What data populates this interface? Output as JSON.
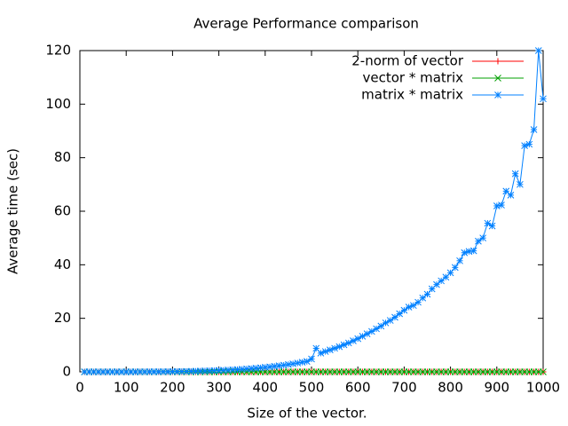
{
  "chart_data": {
    "type": "line",
    "title": "Average Performance comparison",
    "x_label": "Size of the vector.",
    "y_label": "Average time (sec)",
    "x": [
      10,
      20,
      30,
      40,
      50,
      60,
      70,
      80,
      90,
      100,
      110,
      120,
      130,
      140,
      150,
      160,
      170,
      180,
      190,
      200,
      210,
      220,
      230,
      240,
      250,
      260,
      270,
      280,
      290,
      300,
      310,
      320,
      330,
      340,
      350,
      360,
      370,
      380,
      390,
      400,
      410,
      420,
      430,
      440,
      450,
      460,
      470,
      480,
      490,
      500,
      510,
      520,
      530,
      540,
      550,
      560,
      570,
      580,
      590,
      600,
      610,
      620,
      630,
      640,
      650,
      660,
      670,
      680,
      690,
      700,
      710,
      720,
      730,
      740,
      750,
      760,
      770,
      780,
      790,
      800,
      810,
      820,
      830,
      840,
      850,
      860,
      870,
      880,
      890,
      900,
      910,
      920,
      930,
      940,
      950,
      960,
      970,
      980,
      990,
      1000
    ],
    "series": [
      {
        "name": "2-norm of vector",
        "color": "#ff0000",
        "marker": "plus",
        "values": [
          0,
          0,
          0,
          0,
          0,
          0,
          0,
          0,
          0,
          0,
          0,
          0,
          0,
          0,
          0,
          0,
          0,
          0,
          0,
          0,
          0,
          0,
          0,
          0,
          0,
          0,
          0,
          0,
          0,
          0,
          0,
          0,
          0,
          0,
          0,
          0,
          0,
          0,
          0,
          0,
          0,
          0,
          0,
          0,
          0,
          0,
          0,
          0,
          0,
          0,
          0,
          0,
          0,
          0,
          0,
          0,
          0,
          0,
          0,
          0,
          0,
          0,
          0,
          0,
          0,
          0,
          0,
          0,
          0,
          0,
          0,
          0,
          0,
          0,
          0,
          0,
          0,
          0,
          0,
          0,
          0,
          0,
          0,
          0,
          0,
          0,
          0,
          0,
          0,
          0,
          0,
          0,
          0,
          0,
          0,
          0,
          0,
          0,
          0,
          0
        ]
      },
      {
        "name": "vector * matrix",
        "color": "#00a000",
        "marker": "cross",
        "values": [
          0,
          0,
          0,
          0,
          0,
          0,
          0,
          0,
          0,
          0,
          0,
          0,
          0,
          0,
          0,
          0,
          0,
          0,
          0,
          0,
          0,
          0,
          0,
          0,
          0,
          0,
          0,
          0,
          0,
          0,
          0,
          0,
          0,
          0,
          0,
          0,
          0,
          0,
          0,
          0,
          0,
          0,
          0,
          0,
          0,
          0,
          0,
          0,
          0,
          0,
          0,
          0,
          0,
          0,
          0,
          0,
          0,
          0,
          0,
          0,
          0,
          0,
          0,
          0,
          0,
          0,
          0,
          0,
          0,
          0,
          0,
          0,
          0,
          0,
          0,
          0,
          0,
          0,
          0,
          0,
          0,
          0,
          0,
          0,
          0,
          0,
          0,
          0,
          0,
          0,
          0,
          0,
          0,
          0,
          0,
          0,
          0,
          0,
          0,
          0
        ]
      },
      {
        "name": "matrix * matrix",
        "color": "#0080ff",
        "marker": "star",
        "values": [
          0,
          0,
          0,
          0,
          0,
          0,
          0,
          0,
          0,
          0.01,
          0.01,
          0.01,
          0.02,
          0.02,
          0.03,
          0.04,
          0.05,
          0.06,
          0.08,
          0.1,
          0.12,
          0.15,
          0.18,
          0.21,
          0.25,
          0.3,
          0.35,
          0.4,
          0.46,
          0.53,
          0.6,
          0.68,
          0.77,
          0.87,
          0.98,
          1.1,
          1.23,
          1.37,
          1.52,
          1.69,
          1.87,
          2.07,
          2.28,
          2.5,
          2.74,
          3.0,
          3.3,
          3.6,
          3.9,
          4.8,
          8.8,
          7.0,
          7.6,
          8.2,
          8.8,
          9.4,
          10.1,
          10.8,
          11.6,
          12.4,
          13.3,
          14.2,
          15.1,
          16.1,
          17.1,
          18.3,
          19.2,
          20.4,
          21.7,
          23.0,
          24.2,
          24.8,
          26.0,
          27.6,
          29.0,
          31.0,
          32.6,
          34.0,
          35.4,
          37.0,
          39.0,
          41.5,
          44.5,
          45.0,
          45.2,
          48.8,
          50.0,
          55.5,
          54.5,
          62.0,
          62.3,
          67.5,
          66.0,
          74.0,
          70.0,
          84.5,
          85.0,
          90.5,
          120,
          102
        ]
      }
    ],
    "xlim": [
      0,
      1000
    ],
    "xticks": [
      0,
      100,
      200,
      300,
      400,
      500,
      600,
      700,
      800,
      900,
      1000
    ],
    "ylim": [
      0,
      120
    ],
    "yticks": [
      0,
      20,
      40,
      60,
      80,
      100,
      120
    ],
    "legend": "top-right"
  }
}
